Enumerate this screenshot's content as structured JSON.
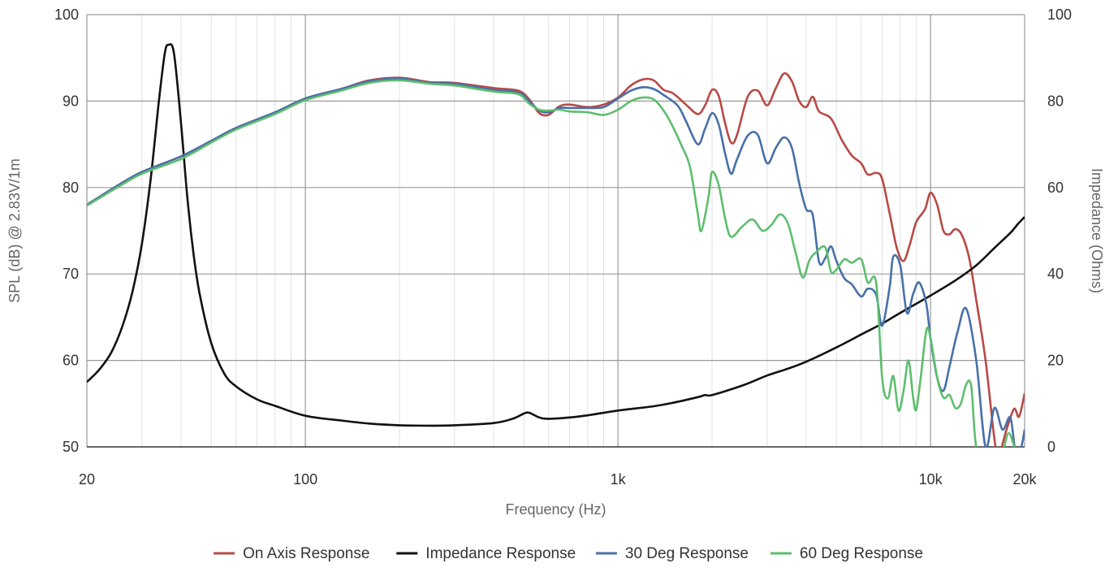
{
  "chart_data": {
    "type": "line",
    "xlabel": "Frequency (Hz)",
    "ylabel": "SPL (dB) @ 2.83V/1m",
    "y2label": "Impedance (Ohms)",
    "xscale": "log",
    "xlim": [
      20,
      20000
    ],
    "ylim": [
      50,
      100
    ],
    "y2lim": [
      0,
      100
    ],
    "x_ticks": [
      {
        "value": 20,
        "label": "20"
      },
      {
        "value": 100,
        "label": "100"
      },
      {
        "value": 1000,
        "label": "1k"
      },
      {
        "value": 10000,
        "label": "10k"
      },
      {
        "value": 20000,
        "label": "20k"
      }
    ],
    "y_ticks": [
      {
        "value": 50,
        "label": "50"
      },
      {
        "value": 60,
        "label": "60"
      },
      {
        "value": 70,
        "label": "70"
      },
      {
        "value": 80,
        "label": "80"
      },
      {
        "value": 90,
        "label": "90"
      },
      {
        "value": 100,
        "label": "100"
      }
    ],
    "y2_ticks": [
      {
        "value": 0,
        "label": "0"
      },
      {
        "value": 20,
        "label": "20"
      },
      {
        "value": 40,
        "label": "40"
      },
      {
        "value": 60,
        "label": "60"
      },
      {
        "value": 80,
        "label": "80"
      },
      {
        "value": 100,
        "label": "100"
      }
    ],
    "grid": true,
    "legend_position": "bottom",
    "series": [
      {
        "name": "On Axis Response",
        "color": "#b84a45",
        "axis": "left",
        "points": [
          [
            20,
            78
          ],
          [
            25,
            80.2
          ],
          [
            30,
            81.8
          ],
          [
            40,
            83.6
          ],
          [
            50,
            85.4
          ],
          [
            60,
            86.9
          ],
          [
            80,
            88.7
          ],
          [
            100,
            90.3
          ],
          [
            130,
            91.4
          ],
          [
            160,
            92.4
          ],
          [
            200,
            92.7
          ],
          [
            250,
            92.2
          ],
          [
            300,
            92.1
          ],
          [
            400,
            91.5
          ],
          [
            480,
            91.2
          ],
          [
            520,
            90.2
          ],
          [
            560,
            88.6
          ],
          [
            600,
            88.4
          ],
          [
            650,
            89.4
          ],
          [
            700,
            89.6
          ],
          [
            800,
            89.3
          ],
          [
            900,
            89.6
          ],
          [
            1000,
            90.4
          ],
          [
            1100,
            91.8
          ],
          [
            1200,
            92.5
          ],
          [
            1300,
            92.4
          ],
          [
            1400,
            91.3
          ],
          [
            1500,
            90.9
          ],
          [
            1650,
            89.6
          ],
          [
            1800,
            88.5
          ],
          [
            1900,
            89.5
          ],
          [
            2000,
            91.3
          ],
          [
            2100,
            90.6
          ],
          [
            2200,
            87.5
          ],
          [
            2300,
            85.2
          ],
          [
            2400,
            86
          ],
          [
            2600,
            90.5
          ],
          [
            2800,
            91.2
          ],
          [
            3000,
            89.5
          ],
          [
            3200,
            91.5
          ],
          [
            3400,
            93.2
          ],
          [
            3600,
            92.3
          ],
          [
            3800,
            90
          ],
          [
            4000,
            89.3
          ],
          [
            4200,
            90.5
          ],
          [
            4400,
            88.8
          ],
          [
            4800,
            88
          ],
          [
            5200,
            85.5
          ],
          [
            5600,
            83.7
          ],
          [
            6000,
            82.8
          ],
          [
            6300,
            81.5
          ],
          [
            6700,
            81.7
          ],
          [
            7000,
            81
          ],
          [
            7400,
            77
          ],
          [
            7800,
            73
          ],
          [
            8200,
            71.5
          ],
          [
            8600,
            73.5
          ],
          [
            9000,
            76
          ],
          [
            9600,
            77.5
          ],
          [
            10000,
            79.4
          ],
          [
            10500,
            78
          ],
          [
            11000,
            75
          ],
          [
            11500,
            74.6
          ],
          [
            12000,
            75.2
          ],
          [
            12600,
            74.5
          ],
          [
            13300,
            71.8
          ],
          [
            14000,
            67
          ],
          [
            15000,
            60
          ],
          [
            16000,
            51
          ],
          [
            16500,
            49
          ],
          [
            17500,
            52
          ],
          [
            18500,
            54.4
          ],
          [
            19200,
            53.5
          ],
          [
            20000,
            56.2
          ]
        ]
      },
      {
        "name": "Impedance Response",
        "color": "#111111",
        "axis": "right",
        "points": [
          [
            20,
            15
          ],
          [
            22,
            18
          ],
          [
            24,
            22
          ],
          [
            26,
            28
          ],
          [
            28,
            36
          ],
          [
            30,
            47
          ],
          [
            32,
            62
          ],
          [
            34,
            80
          ],
          [
            35.5,
            91
          ],
          [
            36.5,
            93
          ],
          [
            38,
            91
          ],
          [
            40,
            75
          ],
          [
            42,
            57
          ],
          [
            44,
            44
          ],
          [
            46,
            35
          ],
          [
            50,
            24
          ],
          [
            55,
            17
          ],
          [
            60,
            14
          ],
          [
            70,
            11
          ],
          [
            80,
            9.5
          ],
          [
            100,
            7.2
          ],
          [
            130,
            6.1
          ],
          [
            160,
            5.4
          ],
          [
            200,
            5.0
          ],
          [
            250,
            4.9
          ],
          [
            300,
            5.0
          ],
          [
            400,
            5.5
          ],
          [
            460,
            6.5
          ],
          [
            500,
            7.7
          ],
          [
            520,
            7.9
          ],
          [
            560,
            6.8
          ],
          [
            600,
            6.5
          ],
          [
            700,
            6.8
          ],
          [
            800,
            7.3
          ],
          [
            1000,
            8.4
          ],
          [
            1300,
            9.4
          ],
          [
            1500,
            10.2
          ],
          [
            1800,
            11.5
          ],
          [
            1900,
            12
          ],
          [
            2000,
            12
          ],
          [
            2500,
            14.2
          ],
          [
            3000,
            16.5
          ],
          [
            3500,
            18.1
          ],
          [
            4000,
            19.7
          ],
          [
            5000,
            23
          ],
          [
            6000,
            26
          ],
          [
            7000,
            28.5
          ],
          [
            8000,
            31
          ],
          [
            10000,
            35
          ],
          [
            12000,
            38.5
          ],
          [
            14000,
            42
          ],
          [
            16000,
            46
          ],
          [
            18000,
            49.5
          ],
          [
            19000,
            51.5
          ],
          [
            20000,
            53.2
          ]
        ]
      },
      {
        "name": "30 Deg Response",
        "color": "#4870a8",
        "axis": "left",
        "points": [
          [
            20,
            78
          ],
          [
            25,
            80.2
          ],
          [
            30,
            81.8
          ],
          [
            40,
            83.6
          ],
          [
            50,
            85.4
          ],
          [
            60,
            86.9
          ],
          [
            80,
            88.7
          ],
          [
            100,
            90.3
          ],
          [
            130,
            91.4
          ],
          [
            160,
            92.3
          ],
          [
            200,
            92.6
          ],
          [
            250,
            92.1
          ],
          [
            300,
            92
          ],
          [
            400,
            91.3
          ],
          [
            480,
            91
          ],
          [
            520,
            90
          ],
          [
            560,
            88.9
          ],
          [
            600,
            88.7
          ],
          [
            650,
            89.2
          ],
          [
            700,
            89.2
          ],
          [
            800,
            89.2
          ],
          [
            900,
            89.3
          ],
          [
            1000,
            90.3
          ],
          [
            1100,
            91.2
          ],
          [
            1200,
            91.6
          ],
          [
            1300,
            91.4
          ],
          [
            1400,
            90.7
          ],
          [
            1550,
            89.5
          ],
          [
            1650,
            87.7
          ],
          [
            1800,
            85
          ],
          [
            1900,
            86.8
          ],
          [
            2000,
            88.6
          ],
          [
            2100,
            87.3
          ],
          [
            2200,
            84
          ],
          [
            2300,
            81.6
          ],
          [
            2400,
            83.2
          ],
          [
            2600,
            86
          ],
          [
            2800,
            86.1
          ],
          [
            3000,
            82.8
          ],
          [
            3200,
            84.6
          ],
          [
            3400,
            85.8
          ],
          [
            3600,
            84.6
          ],
          [
            3800,
            80.5
          ],
          [
            4000,
            77.5
          ],
          [
            4200,
            76.8
          ],
          [
            4400,
            71.4
          ],
          [
            4600,
            71.8
          ],
          [
            4800,
            73.2
          ],
          [
            5000,
            71.5
          ],
          [
            5300,
            69.5
          ],
          [
            5600,
            68.8
          ],
          [
            6000,
            67.4
          ],
          [
            6300,
            68.3
          ],
          [
            6700,
            67.6
          ],
          [
            7000,
            64
          ],
          [
            7400,
            68.5
          ],
          [
            7600,
            72
          ],
          [
            8000,
            71
          ],
          [
            8400,
            65.5
          ],
          [
            8800,
            67.7
          ],
          [
            9200,
            69
          ],
          [
            9700,
            66.5
          ],
          [
            10000,
            62.5
          ],
          [
            10500,
            58
          ],
          [
            11000,
            56.5
          ],
          [
            11500,
            59.3
          ],
          [
            12200,
            63.3
          ],
          [
            13000,
            66
          ],
          [
            14000,
            60
          ],
          [
            15000,
            50
          ],
          [
            16000,
            54.5
          ],
          [
            17000,
            52
          ],
          [
            18000,
            53.4
          ],
          [
            18700,
            49.5
          ],
          [
            19500,
            50
          ],
          [
            20000,
            52
          ]
        ]
      },
      {
        "name": "60 Deg Response",
        "color": "#5ebe6e",
        "axis": "left",
        "points": [
          [
            20,
            77.9
          ],
          [
            25,
            80
          ],
          [
            30,
            81.6
          ],
          [
            40,
            83.3
          ],
          [
            50,
            85.2
          ],
          [
            60,
            86.7
          ],
          [
            80,
            88.5
          ],
          [
            100,
            90.1
          ],
          [
            130,
            91.2
          ],
          [
            160,
            92.1
          ],
          [
            200,
            92.4
          ],
          [
            250,
            92
          ],
          [
            300,
            91.8
          ],
          [
            400,
            91.1
          ],
          [
            480,
            90.8
          ],
          [
            520,
            89.7
          ],
          [
            560,
            89
          ],
          [
            600,
            88.9
          ],
          [
            650,
            89
          ],
          [
            700,
            88.8
          ],
          [
            800,
            88.7
          ],
          [
            900,
            88.4
          ],
          [
            1000,
            89
          ],
          [
            1100,
            90
          ],
          [
            1200,
            90.4
          ],
          [
            1300,
            90.2
          ],
          [
            1400,
            88.9
          ],
          [
            1500,
            87
          ],
          [
            1600,
            84.8
          ],
          [
            1700,
            82.4
          ],
          [
            1800,
            77
          ],
          [
            1850,
            75
          ],
          [
            1950,
            79
          ],
          [
            2000,
            81.8
          ],
          [
            2100,
            80.3
          ],
          [
            2200,
            76.5
          ],
          [
            2300,
            74.3
          ],
          [
            2500,
            75.5
          ],
          [
            2700,
            76.3
          ],
          [
            2900,
            75
          ],
          [
            3100,
            75.7
          ],
          [
            3300,
            76.9
          ],
          [
            3500,
            75.8
          ],
          [
            3700,
            72.5
          ],
          [
            3900,
            69.6
          ],
          [
            4100,
            71.6
          ],
          [
            4300,
            72.5
          ],
          [
            4600,
            73.1
          ],
          [
            4800,
            70.3
          ],
          [
            5000,
            70.5
          ],
          [
            5300,
            71.7
          ],
          [
            5600,
            71.3
          ],
          [
            6000,
            71.7
          ],
          [
            6300,
            69
          ],
          [
            6700,
            69
          ],
          [
            7000,
            58
          ],
          [
            7300,
            55.6
          ],
          [
            7600,
            58.2
          ],
          [
            7900,
            54.2
          ],
          [
            8200,
            56.5
          ],
          [
            8500,
            60
          ],
          [
            8800,
            55.7
          ],
          [
            9000,
            54.3
          ],
          [
            9300,
            58
          ],
          [
            9700,
            63.5
          ],
          [
            10000,
            62.6
          ],
          [
            10500,
            58
          ],
          [
            11000,
            55.7
          ],
          [
            11500,
            56
          ],
          [
            12000,
            54.5
          ],
          [
            12500,
            55
          ],
          [
            13000,
            57.2
          ],
          [
            13500,
            57
          ],
          [
            14000,
            50
          ],
          [
            15000,
            49
          ],
          [
            16000,
            45
          ],
          [
            17000,
            49
          ],
          [
            17800,
            51.6
          ],
          [
            19000,
            49
          ],
          [
            20000,
            49.5
          ]
        ]
      }
    ]
  }
}
